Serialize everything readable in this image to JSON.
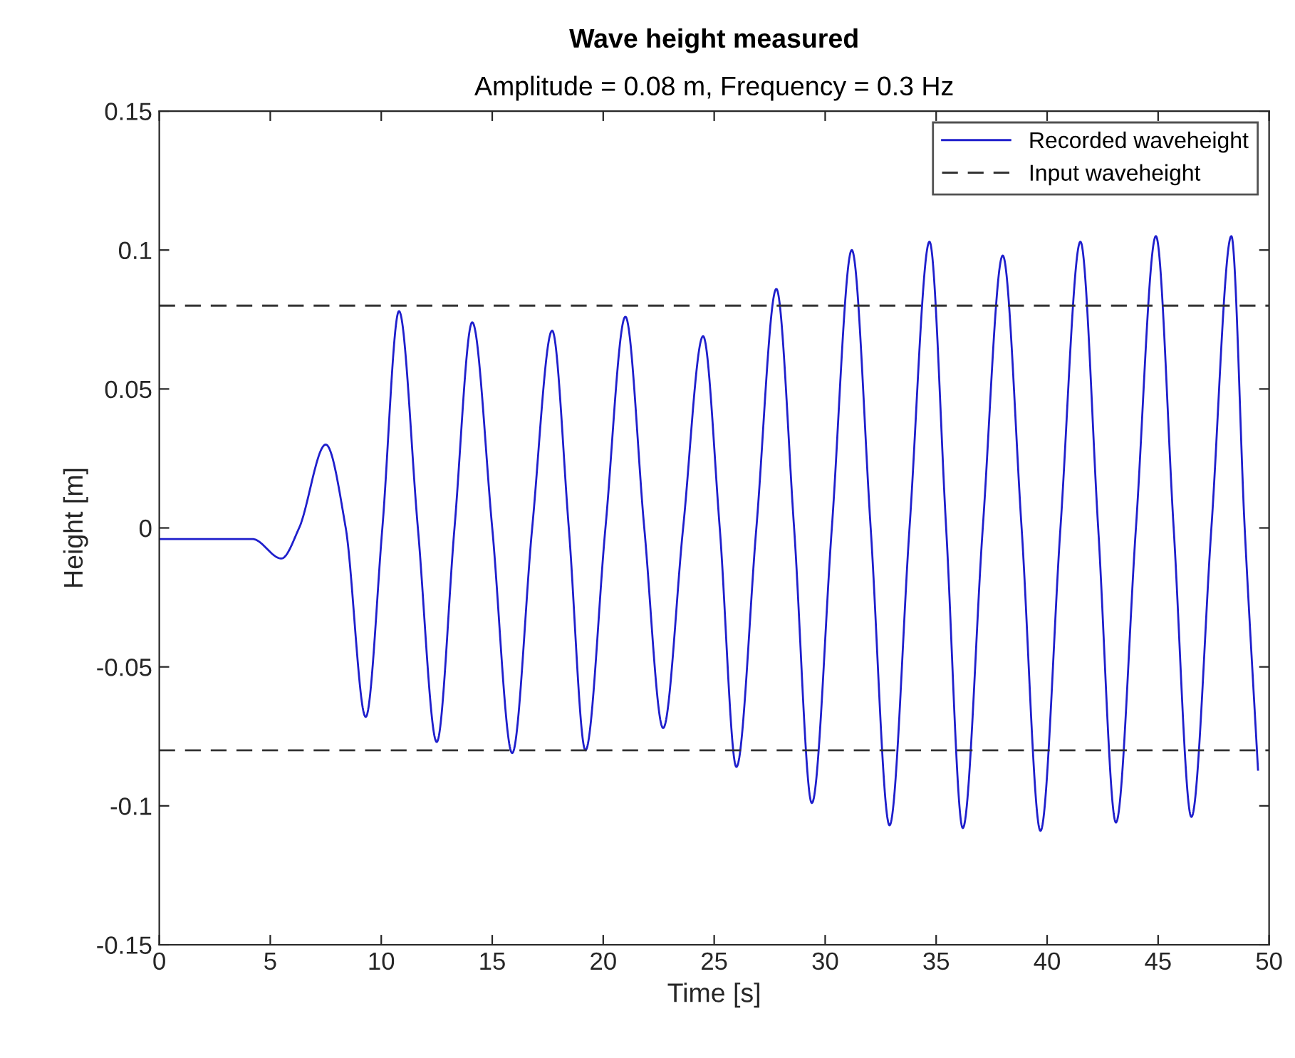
{
  "chart_data": {
    "type": "line",
    "title": "Wave height measured",
    "subtitle": "Amplitude = 0.08 m, Frequency = 0.3 Hz",
    "xlabel": "Time [s]",
    "ylabel": "Height [m]",
    "xlim": [
      0,
      50
    ],
    "xticks": [
      0,
      5,
      10,
      15,
      20,
      25,
      30,
      35,
      40,
      45,
      50
    ],
    "ylim": [
      -0.15,
      0.15
    ],
    "yticks": [
      -0.15,
      -0.1,
      -0.05,
      0,
      0.05,
      0.1,
      0.15
    ],
    "grid": false,
    "legend": "top right",
    "marker": "none",
    "line_style": "solid",
    "series": [
      {
        "name": "Recorded waveheight",
        "color": "#1f1fcc",
        "x": [
          0,
          4.2,
          5.5,
          6.3,
          7.5,
          8.4,
          9.3,
          10.05,
          10.8,
          11.65,
          12.5,
          13.3,
          14.1,
          15.0,
          15.9,
          16.8,
          17.7,
          18.45,
          19.2,
          20.1,
          21.0,
          21.85,
          22.7,
          23.6,
          24.5,
          25.25,
          26.0,
          26.9,
          27.8,
          28.6,
          29.4,
          30.3,
          31.2,
          32.05,
          32.9,
          33.8,
          34.7,
          35.45,
          36.2,
          37.1,
          38.0,
          38.85,
          39.7,
          40.6,
          41.5,
          42.3,
          43.1,
          44.0,
          44.9,
          45.7,
          46.5,
          47.4,
          48.3,
          48.9,
          49.5
        ],
        "values": [
          -0.004,
          -0.004,
          -0.011,
          0,
          0.03,
          0,
          -0.068,
          0,
          0.078,
          0,
          -0.077,
          0,
          0.074,
          0,
          -0.081,
          0,
          0.071,
          0,
          -0.08,
          0,
          0.076,
          0,
          -0.072,
          0,
          0.069,
          0,
          -0.086,
          0,
          0.086,
          0,
          -0.099,
          0,
          0.1,
          0,
          -0.107,
          0,
          0.103,
          0,
          -0.108,
          0,
          0.098,
          0,
          -0.109,
          0,
          0.103,
          0,
          -0.106,
          0,
          0.105,
          0,
          -0.104,
          0,
          0.105,
          0,
          -0.087
        ]
      }
    ],
    "ref_lines": [
      {
        "axis": "y",
        "value": 0.08,
        "label": "Input waveheight",
        "color": "#333333",
        "line_style": "dashed"
      },
      {
        "axis": "y",
        "value": -0.08,
        "label": null,
        "color": "#333333",
        "line_style": "dashed"
      }
    ]
  }
}
